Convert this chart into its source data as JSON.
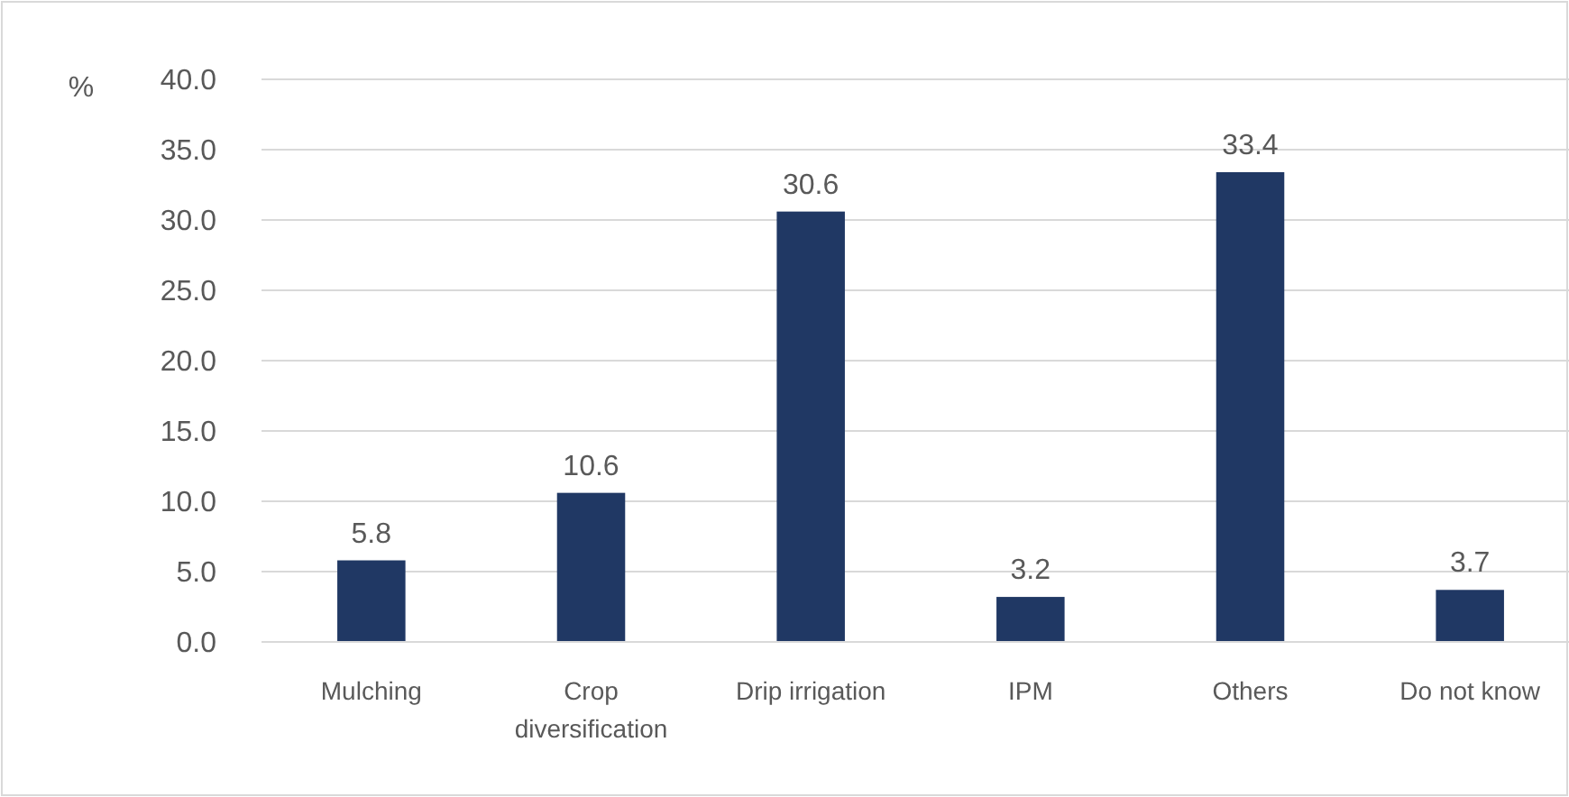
{
  "chart_data": {
    "type": "bar",
    "ylabel": "%",
    "categories": [
      "Mulching",
      "Crop diversification",
      "Drip irrigation",
      "IPM",
      "Others",
      "Do not know"
    ],
    "values": [
      5.8,
      10.6,
      30.6,
      3.2,
      33.4,
      3.7
    ],
    "color": "#203864",
    "data_labels": true,
    "grid": "y",
    "ylim": [
      0,
      40
    ],
    "yticks": [
      {
        "value": 0,
        "label": "0.0"
      },
      {
        "value": 5,
        "label": "5.0"
      },
      {
        "value": 10,
        "label": "10.0"
      },
      {
        "value": 15,
        "label": "15.0"
      },
      {
        "value": 20,
        "label": "20.0"
      },
      {
        "value": 25,
        "label": "25.0"
      },
      {
        "value": 30,
        "label": "30.0"
      },
      {
        "value": 35,
        "label": "35.0"
      },
      {
        "value": 40,
        "label": "40.0"
      }
    ]
  }
}
